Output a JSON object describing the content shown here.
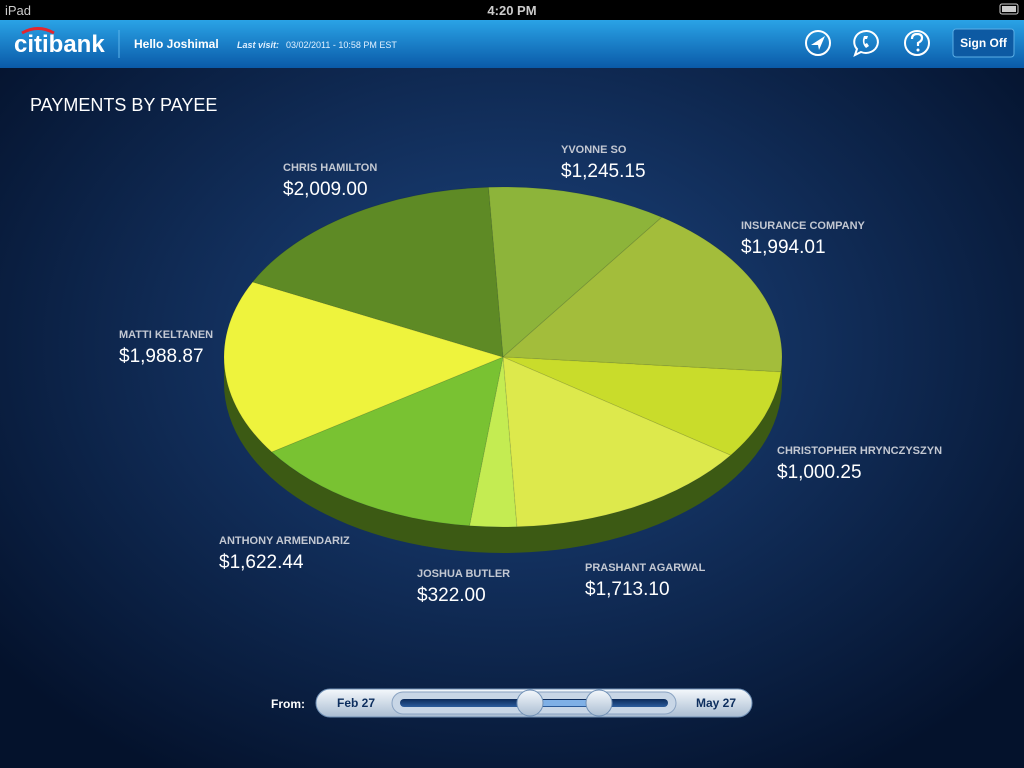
{
  "status_bar": {
    "device": "iPad",
    "time": "4:20 PM"
  },
  "header": {
    "logo": "citibank",
    "greeting": "Hello Joshimal",
    "last_visit_label": "Last visit:",
    "last_visit": "03/02/2011 - 10:58 PM EST",
    "sign_off": "Sign Off"
  },
  "chart_data": {
    "type": "pie",
    "title": "PAYMENTS BY PAYEE",
    "categories": [
      "YVONNE SO",
      "INSURANCE COMPANY",
      "CHRISTOPHER HRYNCZYSZYN",
      "PRASHANT AGARWAL",
      "JOSHUA BUTLER",
      "ANTHONY ARMENDARIZ",
      "MATTI KELTANEN",
      "CHRIS HAMILTON"
    ],
    "values": [
      1245.15,
      1994.01,
      1000.25,
      1713.1,
      322.0,
      1622.44,
      1988.87,
      2009.0
    ],
    "value_labels": [
      "$1,245.15",
      "$1,994.01",
      "$1,000.25",
      "$1,713.10",
      "$322.00",
      "$1,622.44",
      "$1,988.87",
      "$2,009.00"
    ],
    "colors": [
      "#8db43a",
      "#a3bd3b",
      "#c9dc2b",
      "#dde94c",
      "#c4ec52",
      "#79c232",
      "#eef33d",
      "#5e8a25"
    ]
  },
  "slider": {
    "label": "From:",
    "start": "Feb 27",
    "end": "May 27"
  }
}
